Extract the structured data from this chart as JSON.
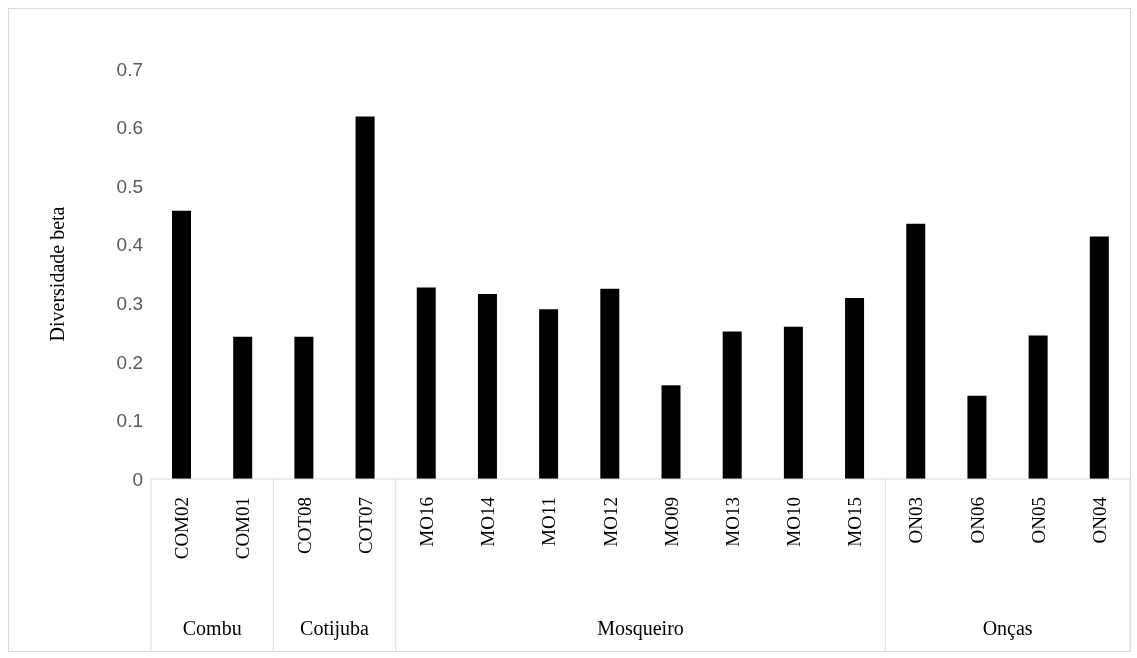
{
  "chart_data": {
    "type": "bar",
    "ylabel": "Diversidade beta",
    "categories": [
      "COM02",
      "COM01",
      "COT08",
      "COT07",
      "MO16",
      "MO14",
      "MO11",
      "MO12",
      "MO09",
      "MO13",
      "MO10",
      "MO15",
      "ON03",
      "ON06",
      "ON05",
      "ON04"
    ],
    "values": [
      0.458,
      0.243,
      0.243,
      0.619,
      0.327,
      0.316,
      0.29,
      0.325,
      0.16,
      0.252,
      0.26,
      0.309,
      0.436,
      0.142,
      0.245,
      0.414
    ],
    "color": "#000000",
    "ylim": [
      0,
      0.7
    ],
    "yticks": [
      0,
      0.1,
      0.2,
      0.3,
      0.4,
      0.5,
      0.6,
      0.7
    ],
    "annotations": [
      "Combu",
      "Cotijuba",
      "Mosqueiro",
      "Onças"
    ]
  }
}
